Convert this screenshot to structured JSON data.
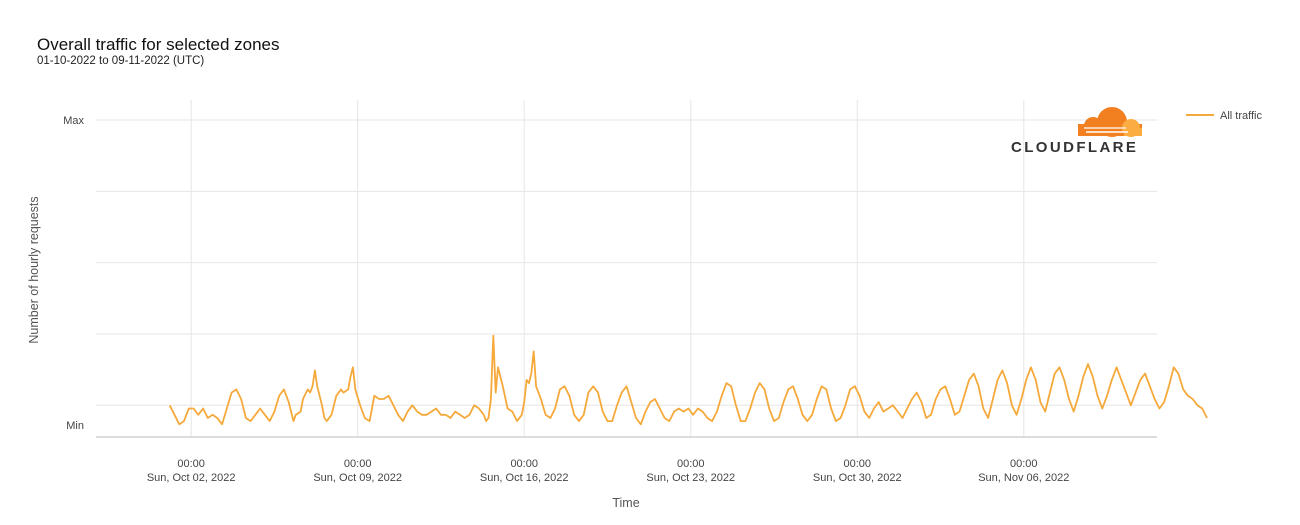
{
  "header": {
    "title": "Overall traffic for selected zones",
    "subtitle": "01-10-2022 to 09-11-2022 (UTC)"
  },
  "logo": {
    "text": "CLOUDFLARE",
    "colors": [
      "#F38020",
      "#FBAD41"
    ]
  },
  "chart_data": {
    "type": "line",
    "ylabel": "Number of hourly requests",
    "xlabel": "Time",
    "y_tick_labels": {
      "max": "Max",
      "min": "Min"
    },
    "ylim": [
      0,
      100
    ],
    "grid": true,
    "x_ticks": [
      {
        "time": "00:00",
        "date": "Sun, Oct 02, 2022",
        "day": 1
      },
      {
        "time": "00:00",
        "date": "Sun, Oct 09, 2022",
        "day": 8
      },
      {
        "time": "00:00",
        "date": "Sun, Oct 16, 2022",
        "day": 15
      },
      {
        "time": "00:00",
        "date": "Sun, Oct 23, 2022",
        "day": 22
      },
      {
        "time": "00:00",
        "date": "Sun, Oct 30, 2022",
        "day": 29
      },
      {
        "time": "00:00",
        "date": "Sun, Nov 06, 2022",
        "day": 36
      }
    ],
    "xlim": [
      -3,
      41.6
    ],
    "legend": {
      "position": "top-right"
    },
    "series": [
      {
        "name": "All traffic",
        "color": "#F6A93B",
        "points": [
          [
            0.1,
            10
          ],
          [
            0.3,
            7
          ],
          [
            0.5,
            4
          ],
          [
            0.7,
            5
          ],
          [
            0.9,
            9
          ],
          [
            1.1,
            9
          ],
          [
            1.3,
            7
          ],
          [
            1.5,
            9
          ],
          [
            1.7,
            6
          ],
          [
            1.9,
            7
          ],
          [
            2.1,
            6
          ],
          [
            2.3,
            4
          ],
          [
            2.5,
            9
          ],
          [
            2.7,
            14
          ],
          [
            2.9,
            15
          ],
          [
            3.1,
            12
          ],
          [
            3.3,
            6
          ],
          [
            3.5,
            5
          ],
          [
            3.7,
            7
          ],
          [
            3.9,
            9
          ],
          [
            4.1,
            7
          ],
          [
            4.3,
            5
          ],
          [
            4.5,
            8
          ],
          [
            4.7,
            13
          ],
          [
            4.9,
            15
          ],
          [
            5.1,
            11
          ],
          [
            5.3,
            5
          ],
          [
            5.4,
            7
          ],
          [
            5.6,
            8
          ],
          [
            5.7,
            12
          ],
          [
            5.9,
            15
          ],
          [
            6.0,
            14
          ],
          [
            6.1,
            16
          ],
          [
            6.2,
            21
          ],
          [
            6.3,
            16
          ],
          [
            6.5,
            10
          ],
          [
            6.6,
            6
          ],
          [
            6.7,
            5
          ],
          [
            6.9,
            7
          ],
          [
            7.0,
            10
          ],
          [
            7.1,
            13
          ],
          [
            7.3,
            15
          ],
          [
            7.4,
            14
          ],
          [
            7.6,
            15
          ],
          [
            7.7,
            19
          ],
          [
            7.8,
            22
          ],
          [
            7.9,
            15
          ],
          [
            8.1,
            10
          ],
          [
            8.3,
            6
          ],
          [
            8.5,
            5
          ],
          [
            8.7,
            13
          ],
          [
            8.9,
            12
          ],
          [
            9.1,
            12
          ],
          [
            9.3,
            13
          ],
          [
            9.5,
            10
          ],
          [
            9.7,
            7
          ],
          [
            9.9,
            5
          ],
          [
            10.1,
            8
          ],
          [
            10.3,
            10
          ],
          [
            10.5,
            8
          ],
          [
            10.7,
            7
          ],
          [
            10.9,
            7
          ],
          [
            11.1,
            8
          ],
          [
            11.3,
            9
          ],
          [
            11.5,
            7
          ],
          [
            11.7,
            7
          ],
          [
            11.9,
            6
          ],
          [
            12.1,
            8
          ],
          [
            12.3,
            7
          ],
          [
            12.5,
            6
          ],
          [
            12.7,
            7
          ],
          [
            12.9,
            10
          ],
          [
            13.1,
            9
          ],
          [
            13.3,
            7
          ],
          [
            13.4,
            5
          ],
          [
            13.5,
            6
          ],
          [
            13.6,
            12
          ],
          [
            13.7,
            32
          ],
          [
            13.8,
            14
          ],
          [
            13.9,
            22
          ],
          [
            14.1,
            16
          ],
          [
            14.3,
            9
          ],
          [
            14.5,
            8
          ],
          [
            14.7,
            5
          ],
          [
            14.9,
            7
          ],
          [
            15.0,
            11
          ],
          [
            15.1,
            18
          ],
          [
            15.2,
            17
          ],
          [
            15.3,
            20
          ],
          [
            15.4,
            27
          ],
          [
            15.5,
            16
          ],
          [
            15.7,
            12
          ],
          [
            15.9,
            7
          ],
          [
            16.1,
            6
          ],
          [
            16.3,
            9
          ],
          [
            16.5,
            15
          ],
          [
            16.7,
            16
          ],
          [
            16.9,
            13
          ],
          [
            17.1,
            7
          ],
          [
            17.3,
            5
          ],
          [
            17.5,
            7
          ],
          [
            17.7,
            14
          ],
          [
            17.9,
            16
          ],
          [
            18.1,
            14
          ],
          [
            18.3,
            8
          ],
          [
            18.5,
            5
          ],
          [
            18.7,
            5
          ],
          [
            18.9,
            10
          ],
          [
            19.1,
            14
          ],
          [
            19.3,
            16
          ],
          [
            19.5,
            11
          ],
          [
            19.7,
            6
          ],
          [
            19.9,
            4
          ],
          [
            20.1,
            8
          ],
          [
            20.3,
            11
          ],
          [
            20.5,
            12
          ],
          [
            20.7,
            9
          ],
          [
            20.9,
            6
          ],
          [
            21.1,
            5
          ],
          [
            21.3,
            8
          ],
          [
            21.5,
            9
          ],
          [
            21.7,
            8
          ],
          [
            21.9,
            9
          ],
          [
            22.1,
            7
          ],
          [
            22.3,
            9
          ],
          [
            22.5,
            8
          ],
          [
            22.7,
            6
          ],
          [
            22.9,
            5
          ],
          [
            23.1,
            8
          ],
          [
            23.3,
            13
          ],
          [
            23.5,
            17
          ],
          [
            23.7,
            16
          ],
          [
            23.9,
            10
          ],
          [
            24.1,
            5
          ],
          [
            24.3,
            5
          ],
          [
            24.5,
            9
          ],
          [
            24.7,
            14
          ],
          [
            24.9,
            17
          ],
          [
            25.1,
            15
          ],
          [
            25.3,
            9
          ],
          [
            25.5,
            5
          ],
          [
            25.7,
            6
          ],
          [
            25.9,
            11
          ],
          [
            26.1,
            15
          ],
          [
            26.3,
            16
          ],
          [
            26.5,
            12
          ],
          [
            26.7,
            7
          ],
          [
            26.9,
            5
          ],
          [
            27.1,
            7
          ],
          [
            27.3,
            12
          ],
          [
            27.5,
            16
          ],
          [
            27.7,
            15
          ],
          [
            27.9,
            9
          ],
          [
            28.1,
            5
          ],
          [
            28.3,
            6
          ],
          [
            28.5,
            10
          ],
          [
            28.7,
            15
          ],
          [
            28.9,
            16
          ],
          [
            29.1,
            13
          ],
          [
            29.3,
            8
          ],
          [
            29.5,
            6
          ],
          [
            29.7,
            9
          ],
          [
            29.9,
            11
          ],
          [
            30.1,
            8
          ],
          [
            30.3,
            9
          ],
          [
            30.5,
            10
          ],
          [
            30.7,
            8
          ],
          [
            30.9,
            6
          ],
          [
            31.1,
            9
          ],
          [
            31.3,
            12
          ],
          [
            31.5,
            14
          ],
          [
            31.7,
            11
          ],
          [
            31.9,
            6
          ],
          [
            32.1,
            7
          ],
          [
            32.3,
            12
          ],
          [
            32.5,
            15
          ],
          [
            32.7,
            16
          ],
          [
            32.9,
            12
          ],
          [
            33.1,
            7
          ],
          [
            33.3,
            8
          ],
          [
            33.5,
            13
          ],
          [
            33.7,
            18
          ],
          [
            33.9,
            20
          ],
          [
            34.1,
            16
          ],
          [
            34.3,
            9
          ],
          [
            34.5,
            6
          ],
          [
            34.7,
            12
          ],
          [
            34.9,
            18
          ],
          [
            35.1,
            21
          ],
          [
            35.3,
            17
          ],
          [
            35.5,
            10
          ],
          [
            35.7,
            7
          ],
          [
            35.9,
            12
          ],
          [
            36.1,
            18
          ],
          [
            36.3,
            22
          ],
          [
            36.5,
            18
          ],
          [
            36.7,
            11
          ],
          [
            36.9,
            8
          ],
          [
            37.1,
            14
          ],
          [
            37.3,
            20
          ],
          [
            37.5,
            22
          ],
          [
            37.7,
            18
          ],
          [
            37.9,
            12
          ],
          [
            38.1,
            8
          ],
          [
            38.3,
            13
          ],
          [
            38.5,
            19
          ],
          [
            38.7,
            23
          ],
          [
            38.9,
            19
          ],
          [
            39.1,
            13
          ],
          [
            39.3,
            9
          ],
          [
            39.5,
            13
          ],
          [
            39.7,
            18
          ],
          [
            39.9,
            22
          ],
          [
            40.1,
            18
          ],
          [
            40.3,
            14
          ],
          [
            40.5,
            10
          ],
          [
            40.7,
            14
          ],
          [
            40.9,
            18
          ],
          [
            41.1,
            20
          ],
          [
            41.3,
            16
          ],
          [
            41.5,
            12
          ],
          [
            41.7,
            9
          ],
          [
            41.9,
            11
          ],
          [
            42.1,
            16
          ],
          [
            42.3,
            22
          ],
          [
            42.5,
            20
          ],
          [
            42.7,
            15
          ],
          [
            42.9,
            13
          ],
          [
            43.1,
            12
          ],
          [
            43.3,
            10
          ],
          [
            43.5,
            9
          ],
          [
            43.7,
            6
          ]
        ]
      }
    ]
  }
}
